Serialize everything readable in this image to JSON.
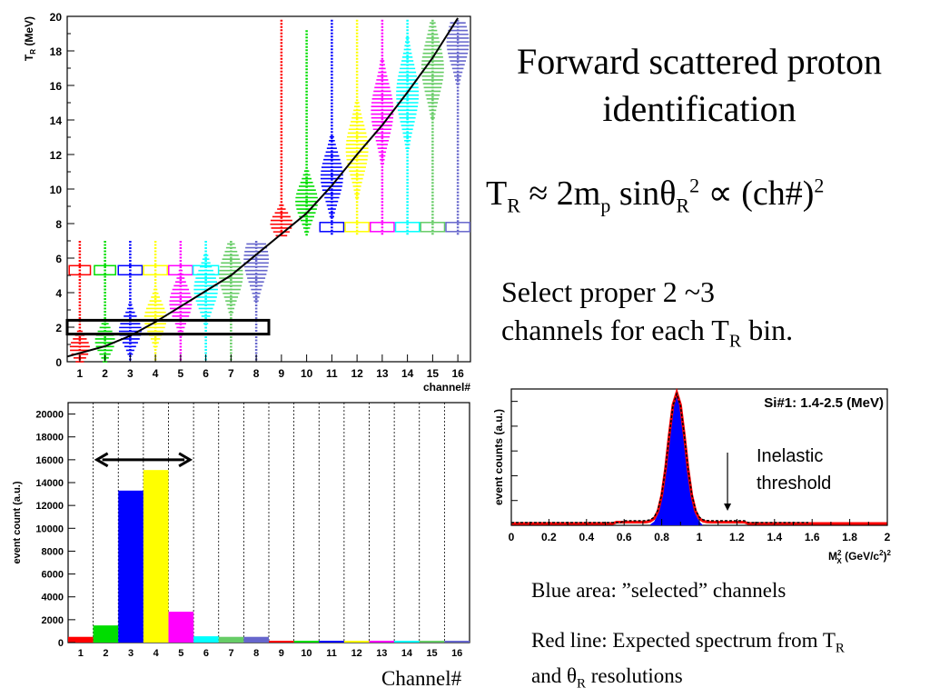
{
  "slide": {
    "title_line1": "Forward scattered proton",
    "title_line2": "identification",
    "formula": {
      "lhs": "T",
      "lhs_sub": "R",
      "approx": "≈",
      "two_m": "2m",
      "m_sub": "p",
      "sin": "sin",
      "theta": "θ",
      "theta_sub": "R",
      "square1": "2",
      "prop": "∝",
      "paren_open": "(",
      "ch": "ch#",
      "paren_close": ")",
      "square2": "2"
    },
    "select_text_a": "Select proper 2 ~3",
    "select_text_b": "channels for each T",
    "select_text_sub": "R",
    "select_text_c": " bin.",
    "blue_note": "Blue area: ”selected” channels",
    "red_note_a": "Red line: Expected spectrum from T",
    "red_note_sub1": "R",
    "red_note_b": "and θ",
    "red_note_sub2": "R",
    "red_note_c": " resolutions",
    "channel_caption": "Channel#"
  },
  "chart_data": [
    {
      "type": "violin",
      "ylabel": "T",
      "ylabel_sub": "R",
      "ylabel_unit": "(MeV)",
      "xlabel": "channel#",
      "ylim": [
        0,
        20
      ],
      "xlim": [
        0.5,
        16.5
      ],
      "yticks": [
        0,
        2,
        4,
        6,
        8,
        10,
        12,
        14,
        16,
        18,
        20
      ],
      "categories": [
        "1",
        "2",
        "3",
        "4",
        "5",
        "6",
        "7",
        "8",
        "9",
        "10",
        "11",
        "12",
        "13",
        "14",
        "15",
        "16"
      ],
      "channels": [
        {
          "ch": 1,
          "color": "#ff0000",
          "center": 0.8,
          "half_width": 0.4,
          "spread": 0.6,
          "range": [
            0,
            7
          ],
          "band": 5.3
        },
        {
          "ch": 2,
          "color": "#00dd00",
          "center": 1.2,
          "half_width": 0.4,
          "spread": 0.7,
          "range": [
            0,
            7
          ],
          "band": 5.3
        },
        {
          "ch": 3,
          "color": "#0000ff",
          "center": 1.8,
          "half_width": 0.45,
          "spread": 0.8,
          "range": [
            0,
            7
          ],
          "band": 5.3
        },
        {
          "ch": 4,
          "color": "#ffff00",
          "center": 2.5,
          "half_width": 0.45,
          "spread": 0.9,
          "range": [
            0,
            7
          ],
          "band": 5.3
        },
        {
          "ch": 5,
          "color": "#ff00ff",
          "center": 3.4,
          "half_width": 0.45,
          "spread": 1.0,
          "range": [
            0,
            7
          ],
          "band": 5.3
        },
        {
          "ch": 6,
          "color": "#00ffff",
          "center": 4.2,
          "half_width": 0.48,
          "spread": 1.1,
          "range": [
            0,
            7
          ],
          "band": 5.3
        },
        {
          "ch": 7,
          "color": "#66cc66",
          "center": 5.0,
          "half_width": 0.48,
          "spread": 1.2,
          "range": [
            0,
            7
          ],
          "band": null
        },
        {
          "ch": 8,
          "color": "#6666cc",
          "center": 5.9,
          "half_width": 0.5,
          "spread": 1.3,
          "range": [
            0,
            7
          ],
          "band": null
        },
        {
          "ch": 9,
          "color": "#ff0000",
          "center": 8.0,
          "half_width": 0.45,
          "spread": 0.6,
          "range": [
            7.3,
            19.8
          ],
          "band": null
        },
        {
          "ch": 10,
          "color": "#00dd00",
          "center": 9.3,
          "half_width": 0.45,
          "spread": 1.0,
          "range": [
            7.3,
            19.2
          ],
          "band": null
        },
        {
          "ch": 11,
          "color": "#0000ff",
          "center": 10.7,
          "half_width": 0.45,
          "spread": 1.3,
          "range": [
            7.3,
            19.8
          ],
          "band": 7.8
        },
        {
          "ch": 12,
          "color": "#ffff00",
          "center": 12.3,
          "half_width": 0.45,
          "spread": 1.5,
          "range": [
            7.3,
            19.8
          ],
          "band": 7.8
        },
        {
          "ch": 13,
          "color": "#ff00ff",
          "center": 14.5,
          "half_width": 0.45,
          "spread": 1.6,
          "range": [
            7.3,
            19.8
          ],
          "band": 7.8
        },
        {
          "ch": 14,
          "color": "#00ffff",
          "center": 15.5,
          "half_width": 0.45,
          "spread": 1.7,
          "range": [
            7.3,
            19.8
          ],
          "band": 7.8
        },
        {
          "ch": 15,
          "color": "#66cc66",
          "center": 17.0,
          "half_width": 0.45,
          "spread": 1.6,
          "range": [
            7.3,
            19.8
          ],
          "band": 7.8
        },
        {
          "ch": 16,
          "color": "#6666cc",
          "center": 18.5,
          "half_width": 0.45,
          "spread": 1.3,
          "range": [
            7.3,
            19.8
          ],
          "band": 7.8
        }
      ],
      "curve": {
        "formula": "T_R proportional to (ch#)^2",
        "points": [
          [
            0.5,
            0.3
          ],
          [
            1,
            0.5
          ],
          [
            2,
            0.9
          ],
          [
            3,
            1.5
          ],
          [
            4,
            2.3
          ],
          [
            5,
            3.2
          ],
          [
            6,
            4.1
          ],
          [
            7,
            5.0
          ],
          [
            8,
            6.2
          ],
          [
            9,
            7.4
          ],
          [
            10,
            8.6
          ],
          [
            11,
            10.2
          ],
          [
            12,
            12.0
          ],
          [
            13,
            13.7
          ],
          [
            14,
            15.6
          ],
          [
            15,
            17.6
          ],
          [
            16,
            19.9
          ]
        ]
      },
      "selection_box": {
        "x": [
          0.5,
          8.5
        ],
        "y": [
          1.6,
          2.4
        ]
      }
    },
    {
      "type": "bar",
      "ylabel": "event count (a.u.)",
      "xlabel": "",
      "ylim": [
        0,
        21000
      ],
      "yticks": [
        0,
        2000,
        4000,
        6000,
        8000,
        10000,
        12000,
        14000,
        16000,
        18000,
        20000
      ],
      "categories": [
        "1",
        "2",
        "3",
        "4",
        "5",
        "6",
        "7",
        "8",
        "9",
        "10",
        "11",
        "12",
        "13",
        "14",
        "15",
        "16"
      ],
      "values": [
        500,
        1500,
        13300,
        15100,
        2700,
        550,
        500,
        500,
        0,
        0,
        0,
        0,
        0,
        0,
        0,
        0
      ],
      "colors": [
        "#ff0000",
        "#00dd00",
        "#0000ff",
        "#ffff00",
        "#ff00ff",
        "#00ffff",
        "#66cc66",
        "#6666cc",
        "#ff0000",
        "#00dd00",
        "#0000ff",
        "#ffff00",
        "#ff00ff",
        "#00ffff",
        "#66cc66",
        "#6666cc"
      ],
      "arrow": {
        "from": 2,
        "to": 5,
        "y": 16000
      }
    },
    {
      "type": "area",
      "title": "Si#1: 1.4-2.5 (MeV)",
      "ylabel": "event counts (a.u.)",
      "xlabel": "M",
      "xlabel_sub": "X",
      "xlabel_sup": "2",
      "xlabel_unit": "(GeV/c",
      "xlabel_unit_sup": "2",
      "xlabel_unit_close": ")",
      "xlabel_unit_sup2": "2",
      "xlim": [
        0,
        2
      ],
      "xticks": [
        "0",
        "0.2",
        "0.4",
        "0.6",
        "0.8",
        "1",
        "1.2",
        "1.4",
        "1.6",
        "1.8",
        "2"
      ],
      "annotation": "Inelastic threshold",
      "annotation_line1": "Inelastic",
      "annotation_line2": "threshold",
      "annotation_x": 1.15,
      "peak_x": 0.88,
      "peak_width": 0.045
    }
  ]
}
